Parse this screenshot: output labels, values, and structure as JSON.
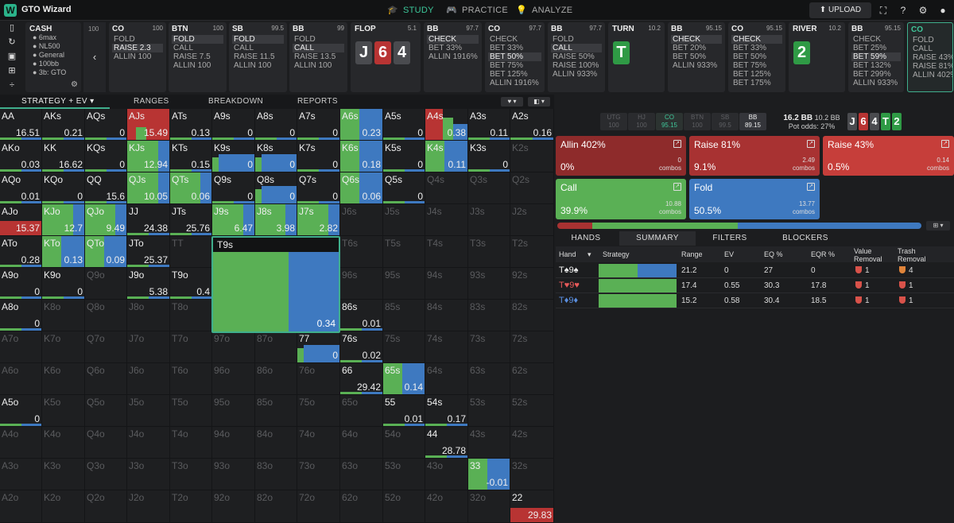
{
  "app": {
    "name": "GTO Wizard",
    "logo_letter": "W"
  },
  "nav": [
    {
      "label": "STUDY",
      "icon": "graduation-cap-icon",
      "active": true
    },
    {
      "label": "PRACTICE",
      "icon": "gamepad-icon",
      "active": false
    },
    {
      "label": "ANALYZE",
      "icon": "lightbulb-icon",
      "active": false
    }
  ],
  "upload": {
    "label": "UPLOAD"
  },
  "cash": {
    "title": "CASH",
    "lines": [
      "6max",
      "NL500",
      "General",
      "100bb",
      "3b: GTO"
    ]
  },
  "back": {
    "stack": "100"
  },
  "actions": [
    {
      "pos": "CO",
      "stack": "100",
      "options": [
        "FOLD",
        "RAISE 2.3",
        "ALLIN 100"
      ],
      "on": 1
    },
    {
      "pos": "BTN",
      "stack": "100",
      "options": [
        "FOLD",
        "CALL",
        "RAISE 7.5",
        "ALLIN 100"
      ],
      "on": 0
    },
    {
      "pos": "SB",
      "stack": "99.5",
      "options": [
        "FOLD",
        "CALL",
        "RAISE 11.5",
        "ALLIN 100"
      ],
      "on": 0
    },
    {
      "pos": "BB",
      "stack": "99",
      "options": [
        "FOLD",
        "CALL",
        "RAISE 13.5",
        "ALLIN 100"
      ],
      "on": 1
    },
    {
      "street": "FLOP",
      "pot": "5.1",
      "cards": [
        {
          "r": "J",
          "c": "grey"
        },
        {
          "r": "6",
          "c": "red"
        },
        {
          "r": "4",
          "c": "grey"
        }
      ]
    },
    {
      "pos": "BB",
      "stack": "97.7",
      "options": [
        "CHECK",
        "BET 33%",
        "ALLIN 1916%"
      ],
      "on": 0
    },
    {
      "pos": "CO",
      "stack": "97.7",
      "options": [
        "CHECK",
        "BET 33%",
        "BET 50%",
        "BET 75%",
        "BET 125%",
        "ALLIN 1916%"
      ],
      "on": 2
    },
    {
      "pos": "BB",
      "stack": "97.7",
      "options": [
        "FOLD",
        "CALL",
        "RAISE 50%",
        "RAISE 100%",
        "ALLIN 933%"
      ],
      "on": 1
    },
    {
      "street": "TURN",
      "pot": "10.2",
      "cards": [
        {
          "r": "T",
          "c": "green"
        }
      ]
    },
    {
      "pos": "BB",
      "stack": "95.15",
      "options": [
        "CHECK",
        "BET 20%",
        "BET 50%",
        "ALLIN 933%"
      ],
      "on": 0
    },
    {
      "pos": "CO",
      "stack": "95.15",
      "options": [
        "CHECK",
        "BET 33%",
        "BET 50%",
        "BET 75%",
        "BET 125%",
        "BET 175%"
      ],
      "on": 0
    },
    {
      "street": "RIVER",
      "pot": "10.2",
      "cards": [
        {
          "r": "2",
          "c": "green"
        }
      ]
    },
    {
      "pos": "BB",
      "stack": "95.15",
      "options": [
        "CHECK",
        "BET 25%",
        "BET 59%",
        "BET 132%",
        "BET 299%",
        "ALLIN 933%"
      ],
      "on": 2
    },
    {
      "pos": "CO",
      "stack": "",
      "options": [
        "FOLD",
        "CALL",
        "RAISE 43%",
        "RAISE 81%",
        "ALLIN 402%"
      ],
      "on": -1,
      "selected": true
    }
  ],
  "subtabs": [
    "STRATEGY + EV",
    "RANGES",
    "BREAKDOWN",
    "REPORTS"
  ],
  "grid": [
    [
      "AA",
      "16.51",
      "",
      ""
    ],
    [
      "AKs",
      "0.21",
      "",
      ""
    ],
    [
      "AQs",
      "0",
      "",
      ""
    ],
    [
      "AJs",
      "15.49",
      "mix1",
      ""
    ],
    [
      "ATs",
      "0.13",
      "",
      ""
    ],
    [
      "A9s",
      "0",
      "",
      ""
    ],
    [
      "A8s",
      "0",
      "",
      ""
    ],
    [
      "A7s",
      "0",
      "",
      ""
    ],
    [
      "A6s",
      "0.23",
      "gb",
      ""
    ],
    [
      "A5s",
      "0",
      "",
      ""
    ],
    [
      "A4s",
      "0.38",
      "rgb",
      ""
    ],
    [
      "A3s",
      "0.11",
      "",
      ""
    ],
    [
      "A2s",
      "0.16",
      "",
      ""
    ],
    [
      "AKo",
      "0.03",
      "",
      ""
    ],
    [
      "KK",
      "16.62",
      "",
      ""
    ],
    [
      "KQs",
      "0",
      "",
      ""
    ],
    [
      "KJs",
      "12.94",
      "g",
      ""
    ],
    [
      "KTs",
      "0.15",
      "",
      ""
    ],
    [
      "K9s",
      "0",
      "b",
      ""
    ],
    [
      "K8s",
      "0",
      "b",
      ""
    ],
    [
      "K7s",
      "0",
      "",
      ""
    ],
    [
      "K6s",
      "0.18",
      "gb",
      ""
    ],
    [
      "K5s",
      "0",
      "",
      ""
    ],
    [
      "K4s",
      "0.11",
      "gb",
      ""
    ],
    [
      "K3s",
      "0",
      "",
      ""
    ],
    [
      "K2s",
      "",
      "",
      "dim"
    ],
    [
      "AQo",
      "0.01",
      "",
      ""
    ],
    [
      "KQo",
      "0",
      "",
      ""
    ],
    [
      "QQ",
      "15.6",
      "",
      ""
    ],
    [
      "QJs",
      "10.05",
      "g",
      ""
    ],
    [
      "QTs",
      "0.06",
      "g",
      ""
    ],
    [
      "Q9s",
      "0",
      "",
      ""
    ],
    [
      "Q8s",
      "0",
      "b",
      ""
    ],
    [
      "Q7s",
      "0",
      "",
      ""
    ],
    [
      "Q6s",
      "0.06",
      "gb",
      ""
    ],
    [
      "Q5s",
      "0",
      "",
      ""
    ],
    [
      "Q4s",
      "",
      "",
      "dim"
    ],
    [
      "Q3s",
      "",
      "",
      "dim"
    ],
    [
      "Q2s",
      "",
      "",
      "dim"
    ],
    [
      "AJo",
      "15.37",
      "r",
      ""
    ],
    [
      "KJo",
      "12.7",
      "g",
      ""
    ],
    [
      "QJo",
      "9.49",
      "g",
      ""
    ],
    [
      "JJ",
      "24.38",
      "",
      ""
    ],
    [
      "JTs",
      "25.76",
      "",
      ""
    ],
    [
      "J9s",
      "6.47",
      "g",
      ""
    ],
    [
      "J8s",
      "3.98",
      "g",
      ""
    ],
    [
      "J7s",
      "2.82",
      "g",
      ""
    ],
    [
      "J6s",
      "",
      "",
      "dim"
    ],
    [
      "J5s",
      "",
      "",
      "dim"
    ],
    [
      "J4s",
      "",
      "",
      "dim"
    ],
    [
      "J3s",
      "",
      "",
      "dim"
    ],
    [
      "J2s",
      "",
      "",
      "dim"
    ],
    [
      "ATo",
      "0.28",
      "",
      ""
    ],
    [
      "KTo",
      "0.13",
      "gb",
      ""
    ],
    [
      "QTo",
      "0.09",
      "gb",
      ""
    ],
    [
      "JTo",
      "25.37",
      "",
      ""
    ],
    [
      "TT",
      "",
      "",
      "dim"
    ],
    [
      "T9s",
      "",
      "",
      ""
    ],
    [
      "T8s",
      "",
      "",
      "dim"
    ],
    [
      "T7s",
      "",
      "",
      "dim"
    ],
    [
      "T6s",
      "",
      "",
      "dim"
    ],
    [
      "T5s",
      "",
      "",
      "dim"
    ],
    [
      "T4s",
      "",
      "",
      "dim"
    ],
    [
      "T3s",
      "",
      "",
      "dim"
    ],
    [
      "T2s",
      "",
      "",
      "dim"
    ],
    [
      "A9o",
      "0",
      "",
      ""
    ],
    [
      "K9o",
      "0",
      "",
      ""
    ],
    [
      "Q9o",
      "",
      "",
      "dim"
    ],
    [
      "J9o",
      "5.38",
      "",
      ""
    ],
    [
      "T9o",
      "0.4",
      "",
      ""
    ],
    [
      "99",
      "",
      "",
      "dim"
    ],
    [
      "98s",
      "",
      "",
      "dim"
    ],
    [
      "97s",
      "",
      "",
      "dim"
    ],
    [
      "96s",
      "",
      "",
      "dim"
    ],
    [
      "95s",
      "",
      "",
      "dim"
    ],
    [
      "94s",
      "",
      "",
      "dim"
    ],
    [
      "93s",
      "",
      "",
      "dim"
    ],
    [
      "92s",
      "",
      "",
      "dim"
    ],
    [
      "A8o",
      "0",
      "",
      ""
    ],
    [
      "K8o",
      "",
      "",
      "dim"
    ],
    [
      "Q8o",
      "",
      "",
      "dim"
    ],
    [
      "J8o",
      "",
      "",
      "dim"
    ],
    [
      "T8o",
      "",
      "",
      "dim"
    ],
    [
      "98o",
      "",
      "",
      "dim"
    ],
    [
      "88",
      "",
      "",
      "dim"
    ],
    [
      "87s",
      "",
      "",
      "dim"
    ],
    [
      "86s",
      "0.01",
      "",
      ""
    ],
    [
      "85s",
      "",
      "",
      "dim"
    ],
    [
      "84s",
      "",
      "",
      "dim"
    ],
    [
      "83s",
      "",
      "",
      "dim"
    ],
    [
      "82s",
      "",
      "",
      "dim"
    ],
    [
      "A7o",
      "",
      "",
      "dim"
    ],
    [
      "K7o",
      "",
      "",
      "dim"
    ],
    [
      "Q7o",
      "",
      "",
      "dim"
    ],
    [
      "J7o",
      "",
      "",
      "dim"
    ],
    [
      "T7o",
      "",
      "",
      "dim"
    ],
    [
      "97o",
      "",
      "",
      "dim"
    ],
    [
      "87o",
      "",
      "",
      "dim"
    ],
    [
      "77",
      "0",
      "b",
      ""
    ],
    [
      "76s",
      "0.02",
      "",
      ""
    ],
    [
      "75s",
      "",
      "",
      "dim"
    ],
    [
      "74s",
      "",
      "",
      "dim"
    ],
    [
      "73s",
      "",
      "",
      "dim"
    ],
    [
      "72s",
      "",
      "",
      "dim"
    ],
    [
      "A6o",
      "",
      "",
      "dim"
    ],
    [
      "K6o",
      "",
      "",
      "dim"
    ],
    [
      "Q6o",
      "",
      "",
      "dim"
    ],
    [
      "J6o",
      "",
      "",
      "dim"
    ],
    [
      "T6o",
      "",
      "",
      "dim"
    ],
    [
      "96o",
      "",
      "",
      "dim"
    ],
    [
      "86o",
      "",
      "",
      "dim"
    ],
    [
      "76o",
      "",
      "",
      "dim"
    ],
    [
      "66",
      "29.42",
      "",
      ""
    ],
    [
      "65s",
      "0.14",
      "gb",
      ""
    ],
    [
      "64s",
      "",
      "",
      "dim"
    ],
    [
      "63s",
      "",
      "",
      "dim"
    ],
    [
      "62s",
      "",
      "",
      "dim"
    ],
    [
      "A5o",
      "0",
      "",
      ""
    ],
    [
      "K5o",
      "",
      "",
      "dim"
    ],
    [
      "Q5o",
      "",
      "",
      "dim"
    ],
    [
      "J5o",
      "",
      "",
      "dim"
    ],
    [
      "T5o",
      "",
      "",
      "dim"
    ],
    [
      "95o",
      "",
      "",
      "dim"
    ],
    [
      "85o",
      "",
      "",
      "dim"
    ],
    [
      "75o",
      "",
      "",
      "dim"
    ],
    [
      "65o",
      "",
      "",
      "dim"
    ],
    [
      "55",
      "0.01",
      "",
      ""
    ],
    [
      "54s",
      "0.17",
      "",
      ""
    ],
    [
      "53s",
      "",
      "",
      "dim"
    ],
    [
      "52s",
      "",
      "",
      "dim"
    ],
    [
      "A4o",
      "",
      "",
      "dim"
    ],
    [
      "K4o",
      "",
      "",
      "dim"
    ],
    [
      "Q4o",
      "",
      "",
      "dim"
    ],
    [
      "J4o",
      "",
      "",
      "dim"
    ],
    [
      "T4o",
      "",
      "",
      "dim"
    ],
    [
      "94o",
      "",
      "",
      "dim"
    ],
    [
      "84o",
      "",
      "",
      "dim"
    ],
    [
      "74o",
      "",
      "",
      "dim"
    ],
    [
      "64o",
      "",
      "",
      "dim"
    ],
    [
      "54o",
      "",
      "",
      "dim"
    ],
    [
      "44",
      "28.78",
      "",
      ""
    ],
    [
      "43s",
      "",
      "",
      "dim"
    ],
    [
      "42s",
      "",
      "",
      "dim"
    ],
    [
      "A3o",
      "",
      "",
      "dim"
    ],
    [
      "K3o",
      "",
      "",
      "dim"
    ],
    [
      "Q3o",
      "",
      "",
      "dim"
    ],
    [
      "J3o",
      "",
      "",
      "dim"
    ],
    [
      "T3o",
      "",
      "",
      "dim"
    ],
    [
      "93o",
      "",
      "",
      "dim"
    ],
    [
      "83o",
      "",
      "",
      "dim"
    ],
    [
      "73o",
      "",
      "",
      "dim"
    ],
    [
      "63o",
      "",
      "",
      "dim"
    ],
    [
      "53o",
      "",
      "",
      "dim"
    ],
    [
      "43o",
      "",
      "",
      "dim"
    ],
    [
      "33",
      "-0.01",
      "gb",
      ""
    ],
    [
      "32s",
      "",
      "",
      "dim"
    ],
    [
      "A2o",
      "",
      "",
      "dim"
    ],
    [
      "K2o",
      "",
      "",
      "dim"
    ],
    [
      "Q2o",
      "",
      "",
      "dim"
    ],
    [
      "J2o",
      "",
      "",
      "dim"
    ],
    [
      "T2o",
      "",
      "",
      "dim"
    ],
    [
      "92o",
      "",
      "",
      "dim"
    ],
    [
      "82o",
      "",
      "",
      "dim"
    ],
    [
      "72o",
      "",
      "",
      "dim"
    ],
    [
      "62o",
      "",
      "",
      "dim"
    ],
    [
      "52o",
      "",
      "",
      "dim"
    ],
    [
      "42o",
      "",
      "",
      "dim"
    ],
    [
      "32o",
      "",
      "",
      "dim"
    ],
    [
      "22",
      "29.83",
      "r",
      ""
    ]
  ],
  "big": {
    "hand": "T9s",
    "ev": "0.34",
    "green": 0.6,
    "blue": 0.4
  },
  "positions": [
    {
      "name": "UTG",
      "stack": "100"
    },
    {
      "name": "HJ",
      "stack": "100"
    },
    {
      "name": "CO",
      "stack": "95.15"
    },
    {
      "name": "BTN",
      "stack": "100"
    },
    {
      "name": "SB",
      "stack": "99.5"
    },
    {
      "name": "BB",
      "stack": "89.15"
    }
  ],
  "pot": {
    "bb": "16.2 BB",
    "side": "10.2 BB",
    "odds_label": "Pot odds:",
    "odds": "27%"
  },
  "board": [
    {
      "r": "J",
      "c": "grey"
    },
    {
      "r": "6",
      "c": "red"
    },
    {
      "r": "4",
      "c": "grey"
    },
    {
      "r": "T",
      "c": "green"
    },
    {
      "r": "2",
      "c": "green"
    }
  ],
  "action_boxes": [
    {
      "name": "Allin 402%",
      "pct": "0%",
      "combos": "0",
      "color": "#8e2b2b"
    },
    {
      "name": "Raise 81%",
      "pct": "9.1%",
      "combos": "2.49",
      "color": "#a83232"
    },
    {
      "name": "Raise 43%",
      "pct": "0.5%",
      "combos": "0.14",
      "color": "#c63e3a"
    },
    {
      "name": "Call",
      "pct": "39.9%",
      "combos": "10.88",
      "color": "#5ab055"
    },
    {
      "name": "Fold",
      "pct": "50.5%",
      "combos": "13.77",
      "color": "#3e79c0"
    }
  ],
  "combos_label": "combos",
  "freq": [
    {
      "v": 9.6,
      "c": "#a83232"
    },
    {
      "v": 39.9,
      "c": "#5ab055"
    },
    {
      "v": 50.5,
      "c": "#3e79c0"
    }
  ],
  "rtabs": [
    "HANDS",
    "SUMMARY",
    "FILTERS",
    "BLOCKERS"
  ],
  "table": {
    "headers": [
      "Hand",
      "Strategy",
      "Range",
      "EV",
      "EQ %",
      "EQR %",
      "Value Removal",
      "Trash Removal"
    ],
    "rows": [
      {
        "hand": "T♠9♠",
        "color": "#eee",
        "split": [
          0.5,
          0.5
        ],
        "range": "21.2",
        "ev": "0",
        "eq": "27",
        "eqr": "0",
        "vr": "1",
        "tr": "4"
      },
      {
        "hand": "T♥9♥",
        "color": "#e85a5a",
        "split": [
          1,
          0
        ],
        "range": "17.4",
        "ev": "0.55",
        "eq": "30.3",
        "eqr": "17.8",
        "vr": "1",
        "tr": "1"
      },
      {
        "hand": "T♦9♦",
        "color": "#5a8fe0",
        "split": [
          1,
          0
        ],
        "range": "15.2",
        "ev": "0.58",
        "eq": "30.4",
        "eqr": "18.5",
        "vr": "1",
        "tr": "1"
      }
    ]
  }
}
